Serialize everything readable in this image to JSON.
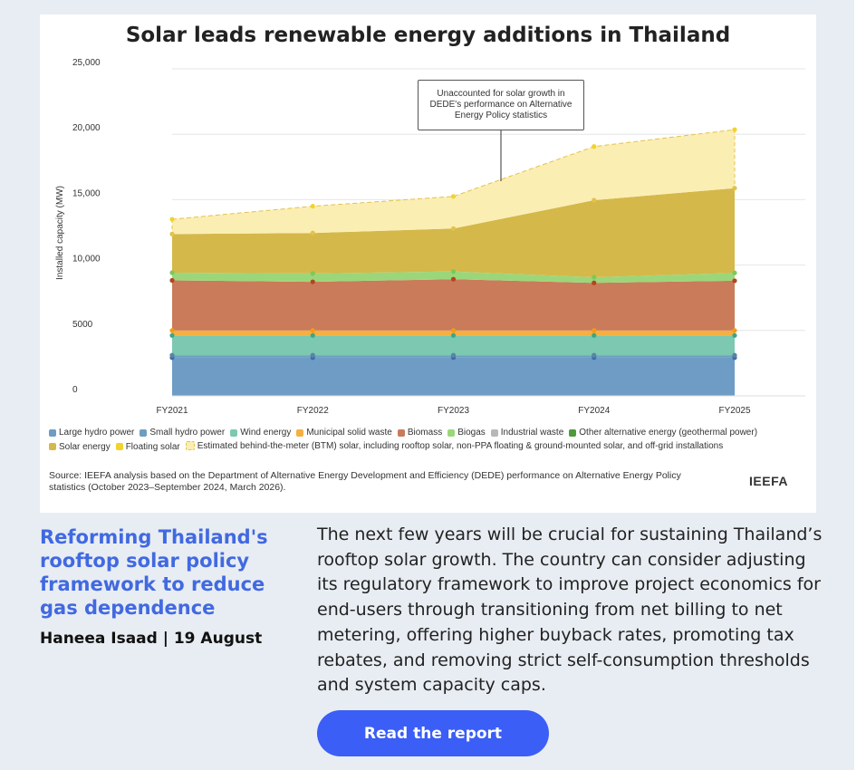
{
  "chart_data": {
    "type": "area",
    "stacked": true,
    "title": "Solar leads renewable energy additions in Thailand",
    "ylabel": "Installed capacity (MW)",
    "xlabel": "",
    "ylim": [
      0,
      25000
    ],
    "yticks": [
      {
        "value": 0,
        "label": "0"
      },
      {
        "value": 5000,
        "label": "5000"
      },
      {
        "value": 10000,
        "label": "10,000"
      },
      {
        "value": 15000,
        "label": "15,000"
      },
      {
        "value": 20000,
        "label": "20,000"
      },
      {
        "value": 25000,
        "label": "25,000"
      }
    ],
    "categories": [
      "FY2021",
      "FY2022",
      "FY2023",
      "FY2024",
      "FY2025"
    ],
    "grid": true,
    "legend_position": "bottom",
    "series": [
      {
        "name": "Large hydro power",
        "color": "#6e9cc4",
        "values": [
          2920,
          2920,
          2920,
          2920,
          2920
        ]
      },
      {
        "name": "Small hydro power",
        "color": "#6f9ebd",
        "values": [
          190,
          190,
          190,
          190,
          190
        ]
      },
      {
        "name": "Wind energy",
        "color": "#7cc8b1",
        "values": [
          1510,
          1510,
          1510,
          1510,
          1510
        ]
      },
      {
        "name": "Municipal solid waste",
        "color": "#f5b041",
        "values": [
          380,
          380,
          380,
          380,
          380
        ]
      },
      {
        "name": "Biomass",
        "color": "#c97b5a",
        "values": [
          3830,
          3720,
          3920,
          3640,
          3800
        ]
      },
      {
        "name": "Biogas",
        "color": "#9cd67a",
        "values": [
          590,
          640,
          590,
          430,
          600
        ]
      },
      {
        "name": "Industrial waste",
        "color": "#b8b8b8",
        "values": [
          0,
          0,
          0,
          0,
          0
        ]
      },
      {
        "name": "Other alternative energy (geothermal power)",
        "color": "#4e9a3b",
        "values": [
          0,
          0,
          0,
          0,
          0
        ]
      },
      {
        "name": "Solar energy",
        "color": "#d4b84a",
        "values": [
          2950,
          3090,
          3280,
          5890,
          6480
        ]
      },
      {
        "name": "Floating solar",
        "color": "#f2d22e",
        "values": [
          0,
          0,
          0,
          0,
          0
        ]
      },
      {
        "name": "Estimated behind-the-meter (BTM) solar, including rooftop solar, non-PPA floating & ground-mounted solar, and off-grid installations",
        "color": "#fbeeb3",
        "values": [
          1130,
          2050,
          2460,
          4100,
          4470
        ]
      }
    ],
    "annotation": "Unaccounted for solar growth in DEDE's performance on Alternative Energy Policy statistics"
  },
  "source_note": "Source: IEEFA analysis based on the Department of Alternative Energy Development and Efficiency (DEDE) performance on Alternative Energy Policy statistics (October 2023–September 2024, March 2026).",
  "brand": "IEEFA",
  "article": {
    "title": "Reforming Thailand's rooftop solar policy framework to reduce gas dependence",
    "byline": "Haneea Isaad | 19 August",
    "summary": "The next few years will be crucial for sustaining Thailand’s rooftop solar growth. The country can consider adjusting its regulatory framework to improve project economics for end-users through transitioning from net billing to net metering, offering higher buyback rates, promoting tax rebates, and removing strict self-consumption thresholds and system capacity caps.",
    "cta_label": "Read the report"
  }
}
